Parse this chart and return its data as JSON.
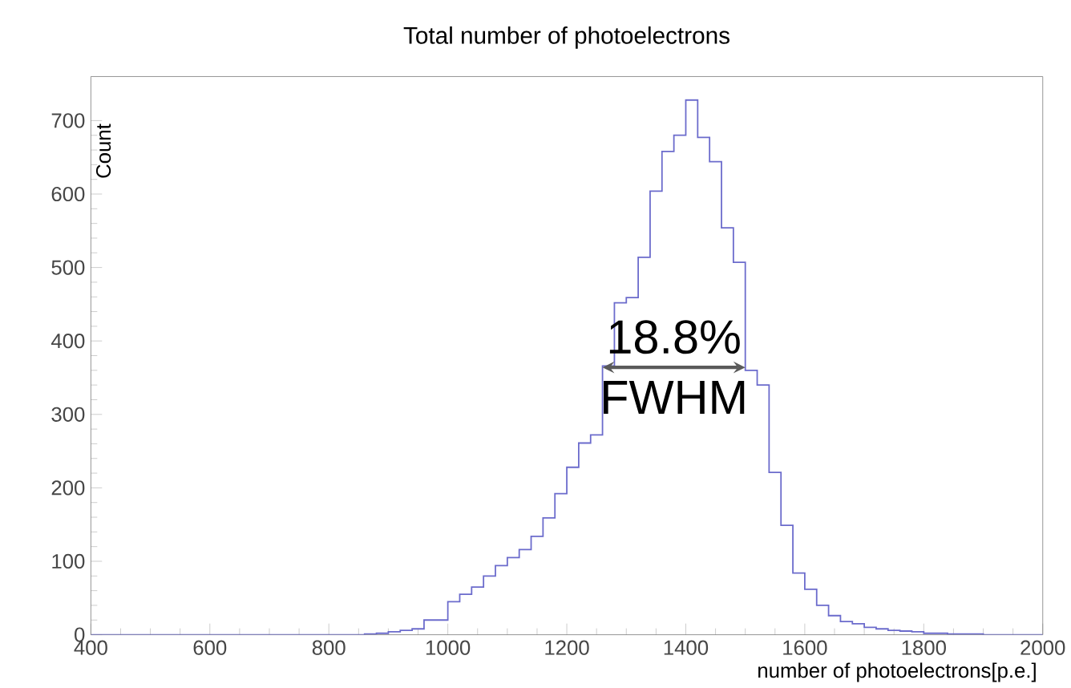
{
  "chart_data": {
    "type": "histogram",
    "title": "Total number of photoelectrons",
    "xlabel": "number of photoelectrons[p.e.]",
    "ylabel": "Count",
    "bins": [
      400,
      420,
      440,
      460,
      480,
      500,
      520,
      540,
      560,
      580,
      600,
      620,
      640,
      660,
      680,
      700,
      720,
      740,
      760,
      780,
      800,
      820,
      840,
      860,
      880,
      900,
      920,
      940,
      960,
      980,
      1000,
      1020,
      1040,
      1060,
      1080,
      1100,
      1120,
      1140,
      1160,
      1180,
      1200,
      1220,
      1240,
      1260,
      1280,
      1300,
      1320,
      1340,
      1360,
      1380,
      1400,
      1420,
      1440,
      1460,
      1480,
      1500,
      1520,
      1540,
      1560,
      1580,
      1600,
      1620,
      1640,
      1660,
      1680,
      1700,
      1720,
      1740,
      1760,
      1780,
      1800,
      1820,
      1840,
      1860,
      1880,
      1900,
      1920,
      1940,
      1960,
      1980,
      2000
    ],
    "values": [
      0,
      0,
      0,
      0,
      0,
      0,
      0,
      0,
      0,
      0,
      0,
      0,
      0,
      0,
      0,
      0,
      0,
      0,
      0,
      0,
      0,
      0,
      0,
      1,
      2,
      4,
      6,
      8,
      20,
      20,
      45,
      55,
      65,
      80,
      94,
      105,
      116,
      134,
      159,
      192,
      228,
      261,
      272,
      366,
      452,
      459,
      514,
      604,
      658,
      680,
      728,
      677,
      644,
      554,
      507,
      360,
      340,
      221,
      149,
      84,
      62,
      40,
      26,
      18,
      15,
      10,
      8,
      6,
      5,
      4,
      2,
      2,
      1,
      1,
      1,
      0,
      0,
      0,
      0,
      0
    ],
    "color": "#6b6bcc",
    "xlim": [
      400,
      2000
    ],
    "ylim": [
      0,
      760
    ],
    "xticks": [
      400,
      600,
      800,
      1000,
      1200,
      1400,
      1600,
      1800,
      2000
    ],
    "yticks": [
      0,
      100,
      200,
      300,
      400,
      500,
      600,
      700
    ],
    "annotations": [
      "18.8%",
      "FWHM"
    ]
  }
}
